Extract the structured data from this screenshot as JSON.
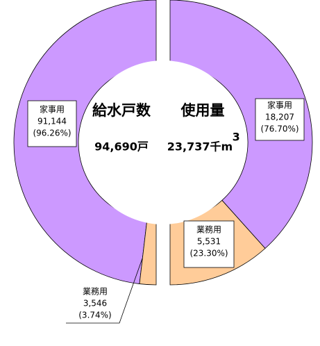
{
  "chart_data": [
    {
      "type": "donut",
      "title": "給水戸数",
      "categories": [
        "家事用",
        "業務用"
      ],
      "values": [
        91144,
        3546
      ],
      "value_labels": [
        "91,144",
        "3,546"
      ],
      "shares": [
        96.26,
        3.74
      ],
      "share_labels": [
        "(96.26%)",
        "(3.74%)"
      ],
      "colors": [
        "#cc99ff",
        "#ffcc99"
      ],
      "total": 94690,
      "total_label": "94,690戸"
    },
    {
      "type": "donut",
      "title": "使用量",
      "categories": [
        "家事用",
        "業務用"
      ],
      "values": [
        18207,
        5531
      ],
      "value_labels": [
        "18,207",
        "5,531"
      ],
      "shares": [
        76.7,
        23.3
      ],
      "share_labels": [
        "(76.70%)",
        "(23.30%)"
      ],
      "colors": [
        "#cc99ff",
        "#ffcc99"
      ],
      "total": 23737,
      "total_label": "23,737千m",
      "total_sup": "3"
    }
  ]
}
